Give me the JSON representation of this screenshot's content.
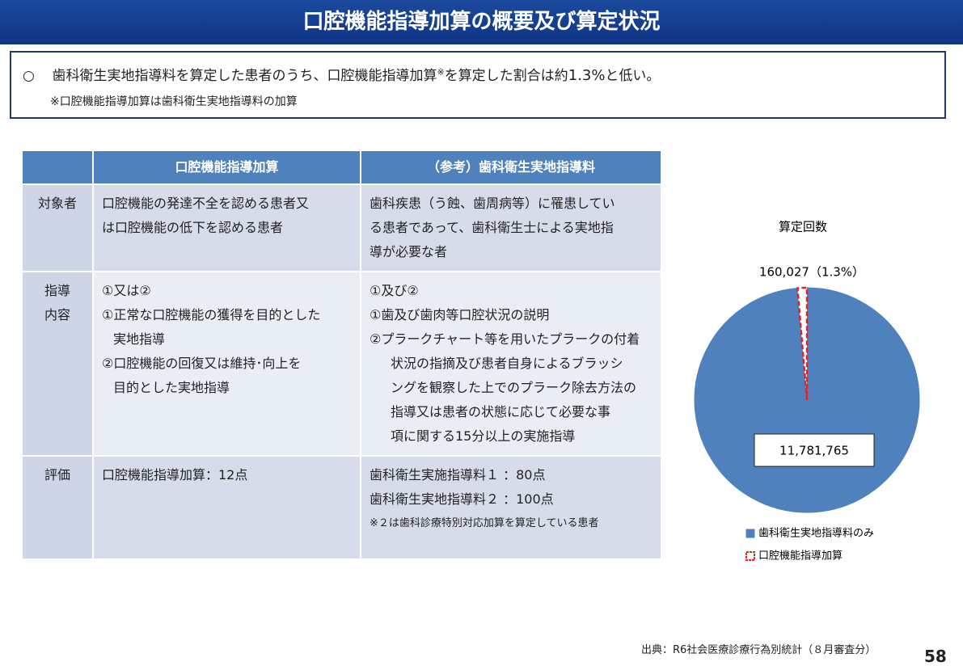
{
  "header": {
    "title": "口腔機能指導加算の概要及び算定状況"
  },
  "summary": {
    "bullet": "○",
    "text_before": "歯科衛生実地指導料を算定した患者のうち、口腔機能指導加算",
    "mark": "※",
    "text_middle": "を算定した割合は約",
    "emphasis": "1.3%",
    "text_after": "と低い。",
    "note": "※口腔機能指導加算は歯科衛生実地指導料の加算"
  },
  "table": {
    "header": [
      "口腔機能指導加算",
      "（参考）歯科衛生実地指導料"
    ],
    "rows": [
      {
        "label": [
          "対象者"
        ],
        "col1": [
          "口腔機能の発達不全を認める患者又",
          "は口腔機能の低下を認める患者"
        ],
        "col2": [
          "歯科疾患（う蝕、歯周病等）に罹患してい",
          "る患者であって、歯科衛生士による実地指",
          "導が必要な者"
        ]
      },
      {
        "label": [
          "指導",
          "内容"
        ],
        "col1": [
          "①又は②",
          "①正常な口腔機能の獲得を目的とした",
          "実地指導",
          "②口腔機能の回復又は維持･向上を",
          "目的とした実地指導"
        ],
        "col2": [
          "①及び②",
          "①歯及び歯肉等口腔状況の説明",
          "②プラークチャート等を用いたプラークの付着",
          "状況の指摘及び患者自身によるブラッシ",
          "ングを観察した上でのプラーク除去方法の",
          "指導又は患者の状態に応じて必要な事",
          "項に関する15分以上の実施指導"
        ]
      },
      {
        "label": [
          "評価"
        ],
        "col1": [
          "口腔機能指導加算：12点"
        ],
        "col2": [
          "歯科衛生実施指導料１ ：80点",
          "歯科衛生実地指導料２ ：100点",
          "※２は歯科診療特別対応加算を算定している患者"
        ]
      }
    ]
  },
  "chart_data": {
    "type": "pie",
    "title": "算定回数",
    "categories": [
      "歯科衛生実地指導料のみ",
      "口腔機能指導加算"
    ],
    "values": [
      11781765,
      160027
    ],
    "value_labels": [
      "11,781,765",
      "160,027（1.3%）"
    ],
    "colors": [
      "#4f81bd",
      "#ffffff"
    ],
    "edge_colors": [
      "#4f81bd",
      "#e02424"
    ]
  },
  "footer": {
    "source": "出典：R6社会医療診療行為別統計（８月審査分）",
    "page": "58"
  }
}
